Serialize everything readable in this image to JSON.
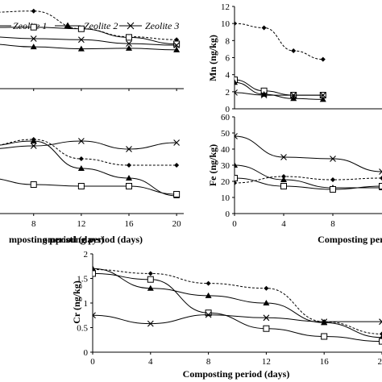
{
  "legend": [
    {
      "series": "Zeolite 1",
      "marker": "triangle",
      "label": "Zeolite 1"
    },
    {
      "series": "Zeolite 2",
      "marker": "triangle",
      "label": "Zeolite 2"
    },
    {
      "series": "Zeolite 3",
      "marker": "x",
      "label": "Zeolite 3"
    }
  ],
  "colors": {
    "line": "#000000",
    "background": "#ffffff"
  },
  "chart_data": [
    {
      "id": "upper-left",
      "type": "line",
      "xlabel": "omposting period (days)",
      "ylabel": "",
      "xlim": [
        4.5,
        20.6
      ],
      "ylim": [
        0,
        25
      ],
      "x_ticks": [
        "8",
        "12",
        "16",
        "20"
      ],
      "y_ticks": [],
      "series": [
        {
          "name": "",
          "marker": "diamond",
          "dash": true,
          "x": [
            4,
            8,
            12,
            16,
            20
          ],
          "y": [
            23.2,
            23.6,
            18.2,
            15.8,
            14.9
          ]
        },
        {
          "name": "",
          "marker": "square",
          "dash": false,
          "x": [
            4,
            8,
            12,
            16,
            20
          ],
          "y": [
            18.6,
            18.7,
            18.2,
            15.6,
            13.6
          ]
        },
        {
          "name": "Zeolite 3",
          "marker": "x",
          "dash": false,
          "x": [
            4,
            8,
            12,
            16,
            20
          ],
          "y": [
            15.8,
            15.2,
            14.9,
            13.7,
            13.2
          ]
        },
        {
          "name": "Zeolite 2",
          "marker": "triangle",
          "dash": false,
          "x": [
            4,
            8,
            12,
            16,
            20
          ],
          "y": [
            13.6,
            12.7,
            12.1,
            12.3,
            11.8
          ]
        }
      ]
    },
    {
      "id": "upper-right",
      "type": "line",
      "xlabel": "",
      "ylabel": "Mn (ng/kg)",
      "xlim": [
        0,
        20
      ],
      "ylim": [
        0,
        12
      ],
      "x_ticks": [],
      "y_ticks": [
        "0",
        "2",
        "4",
        "6",
        "8",
        "10",
        "12"
      ],
      "series": [
        {
          "name": "",
          "marker": "diamond",
          "dash": true,
          "x": [
            0,
            4,
            8,
            12
          ],
          "y": [
            10,
            9.5,
            6.8,
            5.8
          ]
        },
        {
          "name": "",
          "marker": "square",
          "dash": false,
          "x": [
            0,
            4,
            8,
            12
          ],
          "y": [
            3.4,
            2.1,
            1.6,
            1.6
          ]
        },
        {
          "name": "Zeolite 2",
          "marker": "triangle",
          "dash": false,
          "x": [
            0,
            4,
            8,
            12
          ],
          "y": [
            3.1,
            1.7,
            1.2,
            1.1
          ]
        },
        {
          "name": "Zeolite 3",
          "marker": "x",
          "dash": false,
          "x": [
            0,
            4,
            8,
            12
          ],
          "y": [
            1.9,
            1.6,
            1.6,
            1.6
          ]
        }
      ]
    },
    {
      "id": "middle-left",
      "type": "line",
      "xlabel": "mposting period (days)",
      "ylabel": "",
      "xlim": [
        4.5,
        20.6
      ],
      "ylim": [
        0,
        60
      ],
      "x_ticks": [
        "8",
        "12",
        "16",
        "20"
      ],
      "y_ticks": [],
      "series": [
        {
          "name": "",
          "marker": "diamond",
          "dash": true,
          "x": [
            4,
            8,
            12,
            16,
            20
          ],
          "y": [
            42,
            46,
            34,
            30,
            30
          ]
        },
        {
          "name": "Zeolite 2",
          "marker": "triangle",
          "dash": false,
          "x": [
            4,
            8,
            12,
            16,
            20
          ],
          "y": [
            42,
            45,
            28,
            22,
            11
          ]
        },
        {
          "name": "Zeolite 3",
          "marker": "x",
          "dash": false,
          "x": [
            4,
            8,
            12,
            16,
            20
          ],
          "y": [
            40,
            42,
            45,
            40,
            44
          ]
        },
        {
          "name": "",
          "marker": "square",
          "dash": false,
          "x": [
            4,
            8,
            12,
            16,
            20
          ],
          "y": [
            22,
            18,
            17,
            17,
            12
          ]
        }
      ]
    },
    {
      "id": "middle-right",
      "type": "line",
      "xlabel": "Composting perio",
      "ylabel": "Fe (ng/kg)",
      "xlim": [
        0,
        12
      ],
      "ylim": [
        0,
        60
      ],
      "x_ticks": [
        "0",
        "4",
        "8"
      ],
      "y_ticks": [
        "0",
        "10",
        "20",
        "30",
        "40",
        "50",
        "60"
      ],
      "series": [
        {
          "name": "Zeolite 3",
          "marker": "x",
          "dash": false,
          "x": [
            0,
            4,
            8,
            12
          ],
          "y": [
            48,
            35,
            34,
            26
          ]
        },
        {
          "name": "Zeolite 2",
          "marker": "triangle",
          "dash": false,
          "x": [
            0,
            4,
            8,
            12
          ],
          "y": [
            30,
            21,
            16,
            16
          ]
        },
        {
          "name": "",
          "marker": "diamond",
          "dash": true,
          "x": [
            0,
            4,
            8,
            12
          ],
          "y": [
            19,
            23,
            21,
            22
          ]
        },
        {
          "name": "",
          "marker": "square",
          "dash": false,
          "x": [
            0,
            4,
            8,
            12
          ],
          "y": [
            22,
            17,
            15,
            17
          ]
        }
      ]
    },
    {
      "id": "bottom",
      "type": "line",
      "xlabel": "Composting period (days)",
      "ylabel": "Cr (ng/kg)",
      "xlim": [
        0,
        20
      ],
      "ylim": [
        0,
        2
      ],
      "x_ticks": [
        "0",
        "4",
        "8",
        "12",
        "16",
        "20"
      ],
      "y_ticks": [
        "0",
        "0.5",
        "1",
        "1.5",
        "2"
      ],
      "series": [
        {
          "name": "",
          "marker": "diamond",
          "dash": true,
          "x": [
            0,
            4,
            8,
            12,
            16,
            20
          ],
          "y": [
            1.68,
            1.6,
            1.4,
            1.3,
            0.62,
            0.37
          ]
        },
        {
          "name": "Zeolite 2",
          "marker": "triangle",
          "dash": false,
          "x": [
            0,
            4,
            8,
            12,
            16,
            20
          ],
          "y": [
            1.7,
            1.3,
            1.15,
            1.0,
            0.6,
            0.3
          ]
        },
        {
          "name": "",
          "marker": "square",
          "dash": false,
          "x": [
            0,
            4,
            8,
            12,
            16,
            20
          ],
          "y": [
            1.6,
            1.48,
            0.8,
            0.48,
            0.32,
            0.22
          ]
        },
        {
          "name": "Zeolite 3",
          "marker": "x",
          "dash": false,
          "x": [
            0,
            4,
            8,
            12,
            16,
            20
          ],
          "y": [
            0.75,
            0.58,
            0.76,
            0.7,
            0.62,
            0.62
          ]
        }
      ]
    }
  ]
}
